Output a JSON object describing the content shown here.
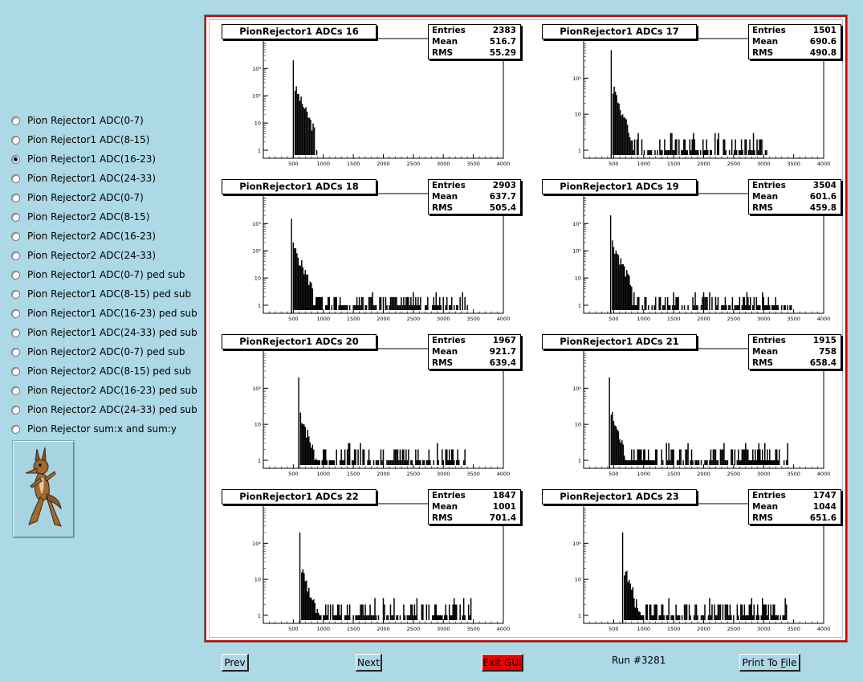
{
  "radio_options": [
    {
      "label": "Pion Rejector1  ADC(0-7)",
      "selected": false
    },
    {
      "label": "Pion Rejector1  ADC(8-15)",
      "selected": false
    },
    {
      "label": "Pion Rejector1  ADC(16-23)",
      "selected": true
    },
    {
      "label": "Pion Rejector1  ADC(24-33)",
      "selected": false
    },
    {
      "label": "Pion Rejector2  ADC(0-7)",
      "selected": false
    },
    {
      "label": "Pion Rejector2  ADC(8-15)",
      "selected": false
    },
    {
      "label": "Pion Rejector2  ADC(16-23)",
      "selected": false
    },
    {
      "label": "Pion Rejector2  ADC(24-33)",
      "selected": false
    },
    {
      "label": "Pion Rejector1  ADC(0-7) ped sub",
      "selected": false
    },
    {
      "label": "Pion Rejector1  ADC(8-15) ped sub",
      "selected": false
    },
    {
      "label": "Pion Rejector1  ADC(16-23) ped sub",
      "selected": false
    },
    {
      "label": "Pion Rejector1  ADC(24-33) ped sub",
      "selected": false
    },
    {
      "label": "Pion Rejector2  ADC(0-7) ped sub",
      "selected": false
    },
    {
      "label": "Pion Rejector2  ADC(8-15) ped sub",
      "selected": false
    },
    {
      "label": "Pion Rejector2  ADC(16-23) ped sub",
      "selected": false
    },
    {
      "label": "Pion Rejector2  ADC(24-33) ped sub",
      "selected": false
    },
    {
      "label": "Pion Rejector sum:x and sum:y",
      "selected": false
    }
  ],
  "mascot_icon": "coyote-cartoon-icon",
  "buttons": {
    "prev": "Prev",
    "next": "Next",
    "exit": "Exit GUI",
    "print_prefix": "Print To ",
    "print_accel": "F",
    "print_suffix": "ile"
  },
  "run_label": "Run #3281",
  "colors": {
    "background": "#add8e6",
    "canvas_border": "#cc0000",
    "exit_button": "#ee0000"
  },
  "stats_labels": {
    "entries": "Entries",
    "mean": "Mean",
    "rms": "RMS"
  },
  "chart_data": [
    {
      "type": "histogram",
      "title": "PionRejector1 ADCs 16",
      "entries": "2383",
      "mean": "516.7",
      "rms": "55.29",
      "log_y": true,
      "xlim": [
        0,
        4000
      ],
      "x_ticks": [
        "500",
        "1000",
        "1500",
        "2000",
        "2500",
        "3000",
        "3500",
        "4000"
      ],
      "y_ticks": [
        "1",
        "10",
        "10²",
        "10³"
      ],
      "peak_adc": 500,
      "peak_count": 2000,
      "tail_end_adc": 880
    },
    {
      "type": "histogram",
      "title": "PionRejector1 ADCs 17",
      "entries": "1501",
      "mean": "690.6",
      "rms": "490.8",
      "log_y": true,
      "xlim": [
        0,
        4000
      ],
      "x_ticks": [
        "500",
        "1000",
        "1500",
        "2000",
        "2500",
        "3000",
        "3500",
        "4000"
      ],
      "y_ticks": [
        "1",
        "10",
        "10²"
      ],
      "peak_adc": 460,
      "peak_count": 600,
      "tail_end_adc": 3050
    },
    {
      "type": "histogram",
      "title": "PionRejector1 ADCs 18",
      "entries": "2903",
      "mean": "637.7",
      "rms": "505.4",
      "log_y": true,
      "xlim": [
        0,
        4000
      ],
      "x_ticks": [
        "500",
        "1000",
        "1500",
        "2000",
        "2500",
        "3000",
        "3500",
        "4000"
      ],
      "y_ticks": [
        "1",
        "10",
        "10²",
        "10³"
      ],
      "peak_adc": 470,
      "peak_count": 1500,
      "tail_end_adc": 3420
    },
    {
      "type": "histogram",
      "title": "PionRejector1 ADCs 19",
      "entries": "3504",
      "mean": "601.6",
      "rms": "459.8",
      "log_y": true,
      "xlim": [
        0,
        4000
      ],
      "x_ticks": [
        "500",
        "1000",
        "1500",
        "2000",
        "2500",
        "3000",
        "3500",
        "4000"
      ],
      "y_ticks": [
        "1",
        "10",
        "10²",
        "10³"
      ],
      "peak_adc": 450,
      "peak_count": 2000,
      "tail_end_adc": 3450
    },
    {
      "type": "histogram",
      "title": "PionRejector1 ADCs 20",
      "entries": "1967",
      "mean": "921.7",
      "rms": "639.4",
      "log_y": true,
      "xlim": [
        0,
        4000
      ],
      "x_ticks": [
        "500",
        "1000",
        "1500",
        "2000",
        "2500",
        "3000",
        "3500",
        "4000"
      ],
      "y_ticks": [
        "1",
        "10",
        "10²"
      ],
      "peak_adc": 590,
      "peak_count": 200,
      "tail_end_adc": 3350
    },
    {
      "type": "histogram",
      "title": "PionRejector1 ADCs 21",
      "entries": "1915",
      "mean": "758",
      "rms": "658.4",
      "log_y": true,
      "xlim": [
        0,
        4000
      ],
      "x_ticks": [
        "500",
        "1000",
        "1500",
        "2000",
        "2500",
        "3000",
        "3500",
        "4000"
      ],
      "y_ticks": [
        "1",
        "10",
        "10²"
      ],
      "peak_adc": 430,
      "peak_count": 200,
      "tail_end_adc": 3400
    },
    {
      "type": "histogram",
      "title": "PionRejector1 ADCs 22",
      "entries": "1847",
      "mean": "1001",
      "rms": "701.4",
      "log_y": true,
      "xlim": [
        0,
        4000
      ],
      "x_ticks": [
        "500",
        "1000",
        "1500",
        "2000",
        "2500",
        "3000",
        "3500",
        "4000"
      ],
      "y_ticks": [
        "1",
        "10",
        "10²"
      ],
      "peak_adc": 610,
      "peak_count": 200,
      "tail_end_adc": 3450
    },
    {
      "type": "histogram",
      "title": "PionRejector1 ADCs 23",
      "entries": "1747",
      "mean": "1044",
      "rms": "651.6",
      "log_y": true,
      "xlim": [
        0,
        4000
      ],
      "x_ticks": [
        "500",
        "1000",
        "1500",
        "2000",
        "2500",
        "3000",
        "3500",
        "4000"
      ],
      "y_ticks": [
        "1",
        "10",
        "10²"
      ],
      "peak_adc": 650,
      "peak_count": 200,
      "tail_end_adc": 3400
    }
  ]
}
